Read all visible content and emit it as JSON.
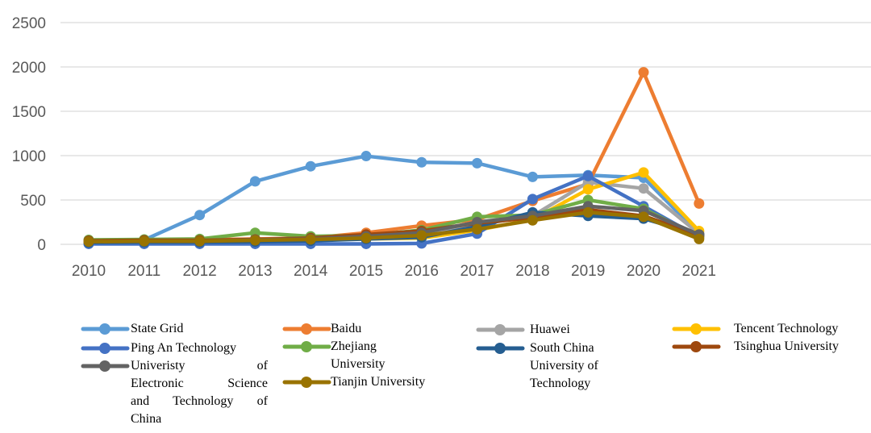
{
  "chart_data": {
    "type": "line",
    "title": "",
    "xlabel": "",
    "ylabel": "",
    "categories": [
      "2010",
      "2011",
      "2012",
      "2013",
      "2014",
      "2015",
      "2016",
      "2017",
      "2018",
      "2019",
      "2020",
      "2021"
    ],
    "ylim": [
      0,
      2500
    ],
    "yticks": [
      0,
      500,
      1000,
      1500,
      2000,
      2500
    ],
    "grid": true,
    "legend_position": "bottom",
    "series": [
      {
        "name": "State Grid",
        "color": "#5b9bd5",
        "values": [
          20,
          50,
          330,
          710,
          880,
          995,
          925,
          915,
          760,
          780,
          750,
          120
        ]
      },
      {
        "name": "Baidu",
        "color": "#ed7d31",
        "values": [
          40,
          50,
          50,
          60,
          70,
          130,
          210,
          280,
          490,
          680,
          1940,
          460
        ]
      },
      {
        "name": "Huawei",
        "color": "#a5a5a5",
        "values": [
          30,
          40,
          40,
          50,
          60,
          90,
          110,
          220,
          320,
          700,
          630,
          120
        ]
      },
      {
        "name": "Tencent Technology",
        "color": "#ffc000",
        "values": [
          20,
          30,
          30,
          40,
          50,
          60,
          70,
          160,
          280,
          620,
          810,
          150
        ]
      },
      {
        "name": "Ping An Technology",
        "color": "#4472c4",
        "values": [
          5,
          5,
          5,
          5,
          5,
          5,
          10,
          120,
          510,
          770,
          430,
          80
        ]
      },
      {
        "name": "Zhejiang University",
        "color": "#70ad47",
        "values": [
          50,
          55,
          60,
          130,
          90,
          100,
          160,
          310,
          330,
          500,
          400,
          90
        ]
      },
      {
        "name": "South China University of Technology",
        "color": "#255e91",
        "values": [
          20,
          25,
          25,
          30,
          40,
          60,
          80,
          200,
          360,
          320,
          290,
          110
        ]
      },
      {
        "name": "Tsinghua University",
        "color": "#9e480e",
        "values": [
          40,
          45,
          45,
          55,
          70,
          110,
          150,
          240,
          300,
          390,
          320,
          100
        ]
      },
      {
        "name": "Univeristy of Electronic Science and Technology of China",
        "color": "#636363",
        "values": [
          30,
          35,
          35,
          50,
          60,
          90,
          130,
          250,
          320,
          430,
          380,
          110
        ]
      },
      {
        "name": "Tianjin University",
        "color": "#997300",
        "values": [
          30,
          35,
          35,
          45,
          55,
          70,
          100,
          170,
          270,
          360,
          310,
          60
        ]
      }
    ]
  },
  "legend": [
    {
      "series": 0,
      "lines": [
        "State Grid"
      ],
      "justify": false
    },
    {
      "series": 4,
      "lines": [
        "Ping An Technology"
      ],
      "justify": false
    },
    {
      "series": 8,
      "lines": [
        "Univeristy of",
        "Electronic Science",
        "and Technology of",
        "China"
      ],
      "justify": true
    },
    {
      "series": 1,
      "lines": [
        "Baidu"
      ],
      "justify": false
    },
    {
      "series": 5,
      "lines": [
        "Zhejiang",
        "University"
      ],
      "justify": false
    },
    {
      "series": 9,
      "lines": [
        "Tianjin University"
      ],
      "justify": false
    },
    {
      "series": 2,
      "lines": [
        "Huawei"
      ],
      "justify": false
    },
    {
      "series": 6,
      "lines": [
        "South China",
        "University of",
        "Technology"
      ],
      "justify": false
    },
    {
      "series": 3,
      "lines": [
        "Tencent Technology"
      ],
      "justify": false
    },
    {
      "series": 7,
      "lines": [
        "Tsinghua University"
      ],
      "justify": false
    }
  ]
}
